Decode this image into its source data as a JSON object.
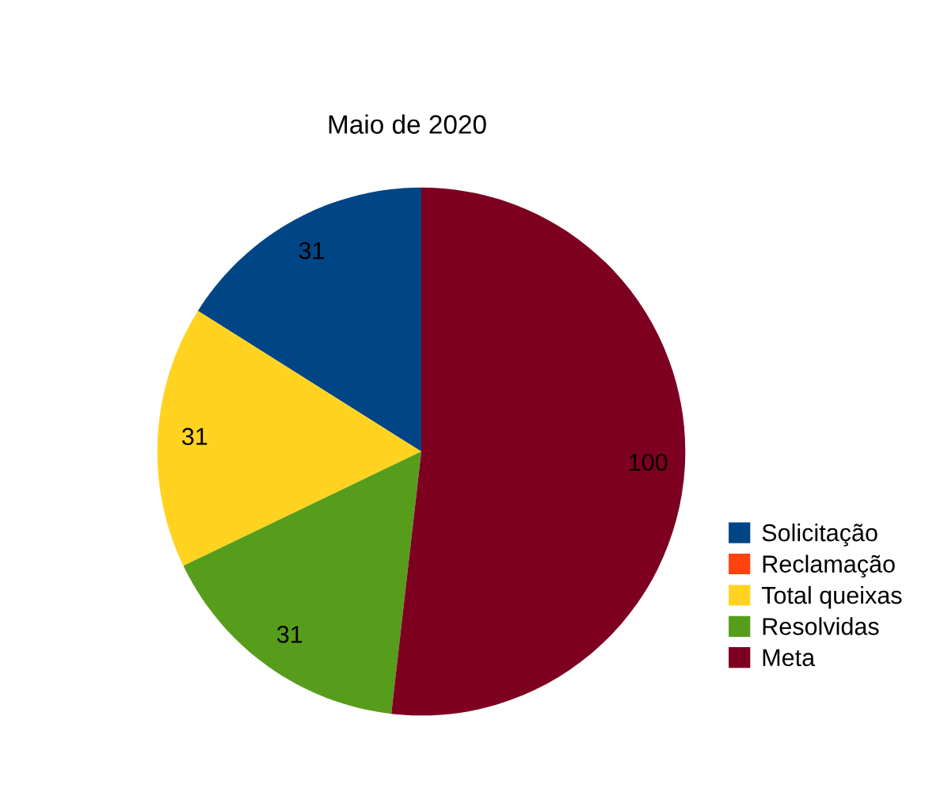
{
  "chart_data": {
    "type": "pie",
    "title": "Maio de 2020",
    "categories": [
      "Solicitação",
      "Reclamação",
      "Total queixas",
      "Resolvidas",
      "Meta"
    ],
    "values": [
      31,
      0,
      31,
      31,
      100
    ],
    "colors": [
      "#004586",
      "#ff420e",
      "#ffd320",
      "#579d1c",
      "#7e0021"
    ],
    "value_labels": [
      "31",
      null,
      "31",
      "31",
      "100"
    ],
    "legend": "right"
  }
}
